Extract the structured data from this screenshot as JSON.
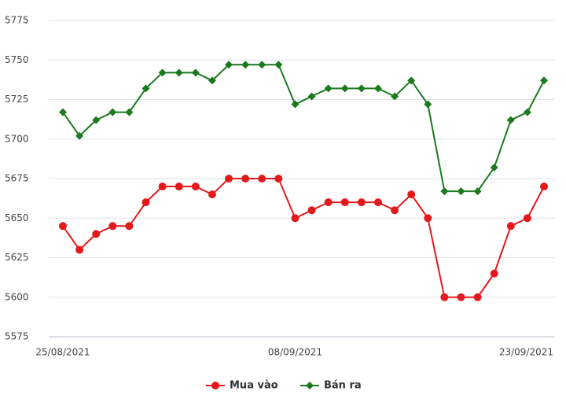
{
  "chart_data": {
    "type": "line",
    "categories": [
      "25/08/2021",
      null,
      null,
      null,
      null,
      null,
      null,
      null,
      null,
      null,
      null,
      null,
      null,
      null,
      "08/09/2021",
      null,
      null,
      null,
      null,
      null,
      null,
      null,
      null,
      null,
      null,
      null,
      null,
      null,
      null,
      "23/09/2021"
    ],
    "series": [
      {
        "name": "Mua vào",
        "color": "#e3191c",
        "marker": "circle",
        "values": [
          5645,
          5630,
          5640,
          5645,
          5645,
          5660,
          5670,
          5670,
          5670,
          5665,
          5675,
          5675,
          5675,
          5675,
          5650,
          5655,
          5660,
          5660,
          5660,
          5660,
          5655,
          5665,
          5650,
          5600,
          5600,
          5600,
          5615,
          5645,
          5650,
          5670
        ]
      },
      {
        "name": "Bán ra",
        "color": "#1b7a1e",
        "marker": "diamond",
        "values": [
          5717,
          5702,
          5712,
          5717,
          5717,
          5732,
          5742,
          5742,
          5742,
          5737,
          5747,
          5747,
          5747,
          5747,
          5722,
          5727,
          5732,
          5732,
          5732,
          5732,
          5727,
          5737,
          5722,
          5667,
          5667,
          5667,
          5682,
          5712,
          5717,
          5737
        ]
      }
    ],
    "ylim": [
      5575,
      5775
    ],
    "yticks": [
      5575,
      5600,
      5625,
      5650,
      5675,
      5700,
      5725,
      5750,
      5775
    ],
    "grid": true,
    "legend": "bottom"
  }
}
